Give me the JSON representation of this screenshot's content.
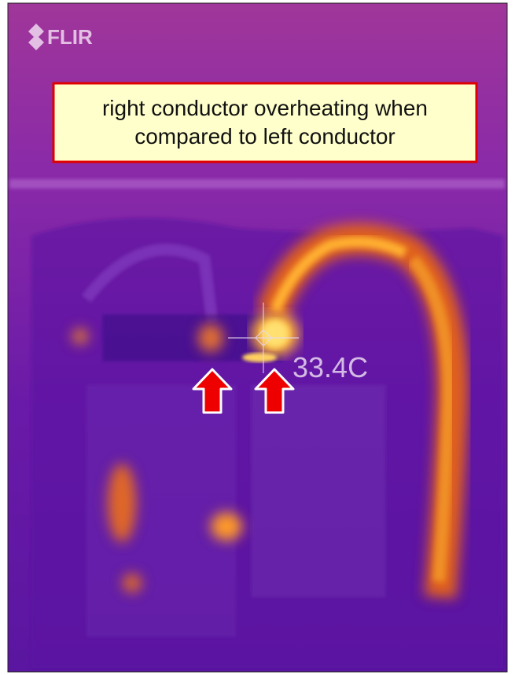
{
  "logo": "FLIR",
  "annotation": {
    "lines": [
      "right conductor overheating when",
      "compared to left conductor"
    ]
  },
  "spot_reading": "33.4C"
}
